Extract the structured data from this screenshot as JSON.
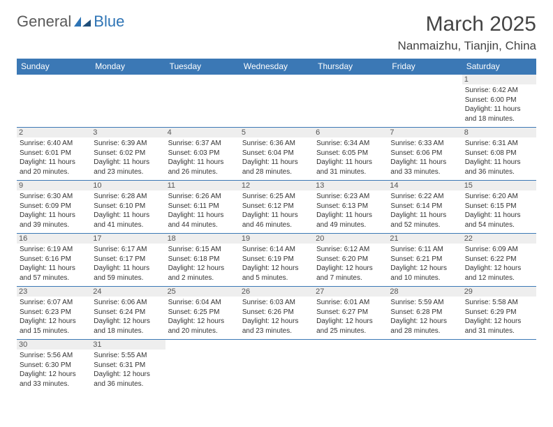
{
  "brand": {
    "part1": "General",
    "part2": "Blue"
  },
  "title": "March 2025",
  "location": "Nanmaizhu, Tianjin, China",
  "colors": {
    "header_bg": "#3b78b5",
    "header_text": "#ffffff",
    "daynum_bg": "#eeeeee",
    "border": "#3b78b5",
    "brand_gray": "#5a5a5a",
    "brand_blue": "#2e74b5"
  },
  "weekdays": [
    "Sunday",
    "Monday",
    "Tuesday",
    "Wednesday",
    "Thursday",
    "Friday",
    "Saturday"
  ],
  "weeks": [
    [
      {
        "day": "",
        "sunrise": "",
        "sunset": "",
        "daylight": ""
      },
      {
        "day": "",
        "sunrise": "",
        "sunset": "",
        "daylight": ""
      },
      {
        "day": "",
        "sunrise": "",
        "sunset": "",
        "daylight": ""
      },
      {
        "day": "",
        "sunrise": "",
        "sunset": "",
        "daylight": ""
      },
      {
        "day": "",
        "sunrise": "",
        "sunset": "",
        "daylight": ""
      },
      {
        "day": "",
        "sunrise": "",
        "sunset": "",
        "daylight": ""
      },
      {
        "day": "1",
        "sunrise": "Sunrise: 6:42 AM",
        "sunset": "Sunset: 6:00 PM",
        "daylight": "Daylight: 11 hours and 18 minutes."
      }
    ],
    [
      {
        "day": "2",
        "sunrise": "Sunrise: 6:40 AM",
        "sunset": "Sunset: 6:01 PM",
        "daylight": "Daylight: 11 hours and 20 minutes."
      },
      {
        "day": "3",
        "sunrise": "Sunrise: 6:39 AM",
        "sunset": "Sunset: 6:02 PM",
        "daylight": "Daylight: 11 hours and 23 minutes."
      },
      {
        "day": "4",
        "sunrise": "Sunrise: 6:37 AM",
        "sunset": "Sunset: 6:03 PM",
        "daylight": "Daylight: 11 hours and 26 minutes."
      },
      {
        "day": "5",
        "sunrise": "Sunrise: 6:36 AM",
        "sunset": "Sunset: 6:04 PM",
        "daylight": "Daylight: 11 hours and 28 minutes."
      },
      {
        "day": "6",
        "sunrise": "Sunrise: 6:34 AM",
        "sunset": "Sunset: 6:05 PM",
        "daylight": "Daylight: 11 hours and 31 minutes."
      },
      {
        "day": "7",
        "sunrise": "Sunrise: 6:33 AM",
        "sunset": "Sunset: 6:06 PM",
        "daylight": "Daylight: 11 hours and 33 minutes."
      },
      {
        "day": "8",
        "sunrise": "Sunrise: 6:31 AM",
        "sunset": "Sunset: 6:08 PM",
        "daylight": "Daylight: 11 hours and 36 minutes."
      }
    ],
    [
      {
        "day": "9",
        "sunrise": "Sunrise: 6:30 AM",
        "sunset": "Sunset: 6:09 PM",
        "daylight": "Daylight: 11 hours and 39 minutes."
      },
      {
        "day": "10",
        "sunrise": "Sunrise: 6:28 AM",
        "sunset": "Sunset: 6:10 PM",
        "daylight": "Daylight: 11 hours and 41 minutes."
      },
      {
        "day": "11",
        "sunrise": "Sunrise: 6:26 AM",
        "sunset": "Sunset: 6:11 PM",
        "daylight": "Daylight: 11 hours and 44 minutes."
      },
      {
        "day": "12",
        "sunrise": "Sunrise: 6:25 AM",
        "sunset": "Sunset: 6:12 PM",
        "daylight": "Daylight: 11 hours and 46 minutes."
      },
      {
        "day": "13",
        "sunrise": "Sunrise: 6:23 AM",
        "sunset": "Sunset: 6:13 PM",
        "daylight": "Daylight: 11 hours and 49 minutes."
      },
      {
        "day": "14",
        "sunrise": "Sunrise: 6:22 AM",
        "sunset": "Sunset: 6:14 PM",
        "daylight": "Daylight: 11 hours and 52 minutes."
      },
      {
        "day": "15",
        "sunrise": "Sunrise: 6:20 AM",
        "sunset": "Sunset: 6:15 PM",
        "daylight": "Daylight: 11 hours and 54 minutes."
      }
    ],
    [
      {
        "day": "16",
        "sunrise": "Sunrise: 6:19 AM",
        "sunset": "Sunset: 6:16 PM",
        "daylight": "Daylight: 11 hours and 57 minutes."
      },
      {
        "day": "17",
        "sunrise": "Sunrise: 6:17 AM",
        "sunset": "Sunset: 6:17 PM",
        "daylight": "Daylight: 11 hours and 59 minutes."
      },
      {
        "day": "18",
        "sunrise": "Sunrise: 6:15 AM",
        "sunset": "Sunset: 6:18 PM",
        "daylight": "Daylight: 12 hours and 2 minutes."
      },
      {
        "day": "19",
        "sunrise": "Sunrise: 6:14 AM",
        "sunset": "Sunset: 6:19 PM",
        "daylight": "Daylight: 12 hours and 5 minutes."
      },
      {
        "day": "20",
        "sunrise": "Sunrise: 6:12 AM",
        "sunset": "Sunset: 6:20 PM",
        "daylight": "Daylight: 12 hours and 7 minutes."
      },
      {
        "day": "21",
        "sunrise": "Sunrise: 6:11 AM",
        "sunset": "Sunset: 6:21 PM",
        "daylight": "Daylight: 12 hours and 10 minutes."
      },
      {
        "day": "22",
        "sunrise": "Sunrise: 6:09 AM",
        "sunset": "Sunset: 6:22 PM",
        "daylight": "Daylight: 12 hours and 12 minutes."
      }
    ],
    [
      {
        "day": "23",
        "sunrise": "Sunrise: 6:07 AM",
        "sunset": "Sunset: 6:23 PM",
        "daylight": "Daylight: 12 hours and 15 minutes."
      },
      {
        "day": "24",
        "sunrise": "Sunrise: 6:06 AM",
        "sunset": "Sunset: 6:24 PM",
        "daylight": "Daylight: 12 hours and 18 minutes."
      },
      {
        "day": "25",
        "sunrise": "Sunrise: 6:04 AM",
        "sunset": "Sunset: 6:25 PM",
        "daylight": "Daylight: 12 hours and 20 minutes."
      },
      {
        "day": "26",
        "sunrise": "Sunrise: 6:03 AM",
        "sunset": "Sunset: 6:26 PM",
        "daylight": "Daylight: 12 hours and 23 minutes."
      },
      {
        "day": "27",
        "sunrise": "Sunrise: 6:01 AM",
        "sunset": "Sunset: 6:27 PM",
        "daylight": "Daylight: 12 hours and 25 minutes."
      },
      {
        "day": "28",
        "sunrise": "Sunrise: 5:59 AM",
        "sunset": "Sunset: 6:28 PM",
        "daylight": "Daylight: 12 hours and 28 minutes."
      },
      {
        "day": "29",
        "sunrise": "Sunrise: 5:58 AM",
        "sunset": "Sunset: 6:29 PM",
        "daylight": "Daylight: 12 hours and 31 minutes."
      }
    ],
    [
      {
        "day": "30",
        "sunrise": "Sunrise: 5:56 AM",
        "sunset": "Sunset: 6:30 PM",
        "daylight": "Daylight: 12 hours and 33 minutes."
      },
      {
        "day": "31",
        "sunrise": "Sunrise: 5:55 AM",
        "sunset": "Sunset: 6:31 PM",
        "daylight": "Daylight: 12 hours and 36 minutes."
      },
      {
        "day": "",
        "sunrise": "",
        "sunset": "",
        "daylight": ""
      },
      {
        "day": "",
        "sunrise": "",
        "sunset": "",
        "daylight": ""
      },
      {
        "day": "",
        "sunrise": "",
        "sunset": "",
        "daylight": ""
      },
      {
        "day": "",
        "sunrise": "",
        "sunset": "",
        "daylight": ""
      },
      {
        "day": "",
        "sunrise": "",
        "sunset": "",
        "daylight": ""
      }
    ]
  ]
}
